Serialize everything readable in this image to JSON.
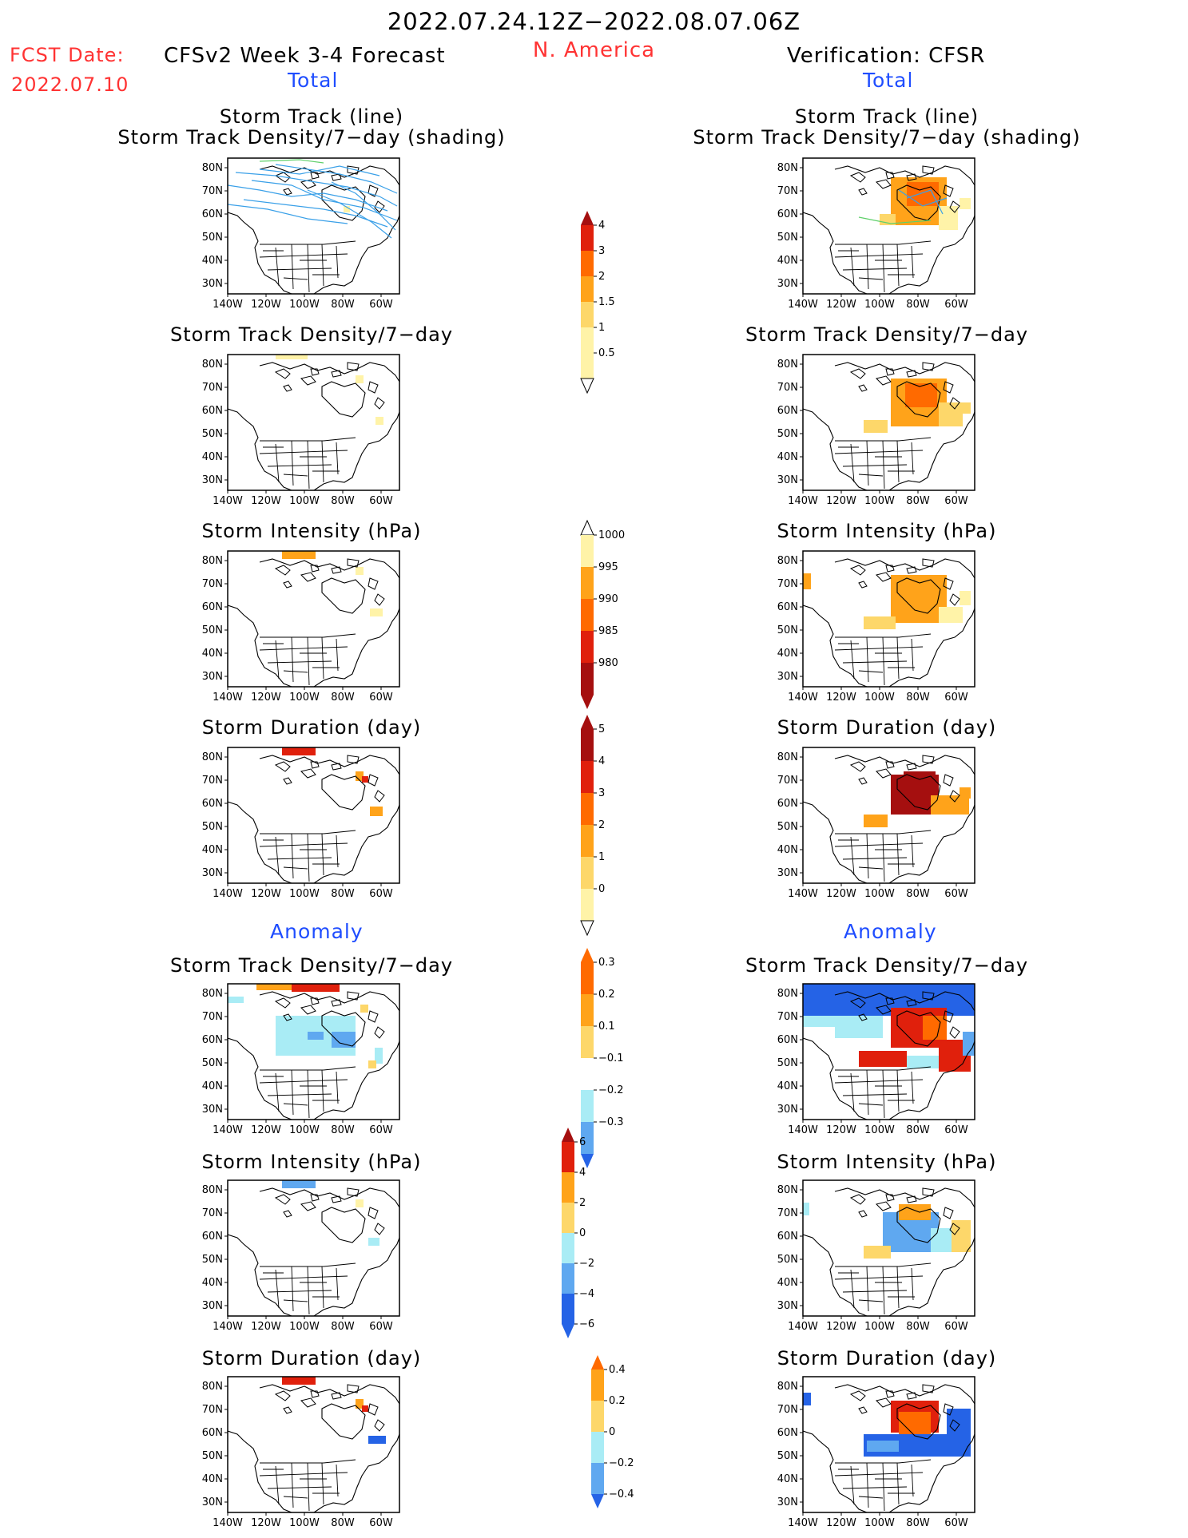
{
  "header": {
    "period": "2022.07.24.12Z−2022.08.07.06Z",
    "fcst_label": "FCST Date:",
    "fcst_date": "2022.07.10",
    "model_title": "CFSv2 Week 3-4 Forecast",
    "region": "N. America",
    "verification_title": "Verification: CFSR"
  },
  "columns": {
    "left_total": "Total",
    "right_total": "Total",
    "left_anomaly": "Anomaly",
    "right_anomaly": "Anomaly"
  },
  "panel_titles": {
    "track_line": "Storm Track (line)",
    "track_density_shading": "Storm Track Density/7−day (shading)",
    "track_density": "Storm Track Density/7−day",
    "intensity": "Storm Intensity (hPa)",
    "duration": "Storm Duration (day)"
  },
  "axes": {
    "lat_labels": [
      "80N",
      "70N",
      "60N",
      "50N",
      "40N",
      "30N"
    ],
    "lon_labels": [
      "140W",
      "120W",
      "100W",
      "80W",
      "60W"
    ]
  },
  "colorbars": {
    "density_total": [
      "0.5",
      "1",
      "1.5",
      "2",
      "3",
      "4"
    ],
    "intensity_total": [
      "1000",
      "995",
      "990",
      "985",
      "980"
    ],
    "duration_total": [
      "0",
      "1",
      "2",
      "3",
      "4",
      "5"
    ],
    "density_anom": [
      "0.3",
      "0.2",
      "0.1",
      "−0.1",
      "−0.2",
      "−0.3"
    ],
    "intensity_anom": [
      "6",
      "4",
      "2",
      "0",
      "−2",
      "−4",
      "−6"
    ],
    "duration_anom": [
      "0.4",
      "0.2",
      "0",
      "−0.2",
      "−0.4"
    ]
  },
  "colors": {
    "title_red": "#ff3333",
    "label_blue": "#1f4dff",
    "light_yellow": "#fff3a8",
    "yellow": "#fdd76a",
    "orange": "#ffa31a",
    "dark_orange": "#ff6a00",
    "red": "#e0200c",
    "dark_red": "#a50f0f",
    "light_blue": "#a9ecf5",
    "mid_blue": "#5fa8f0",
    "blue": "#2563e6",
    "track_blue": "#3aa0e8",
    "track_green": "#5fd06a"
  }
}
